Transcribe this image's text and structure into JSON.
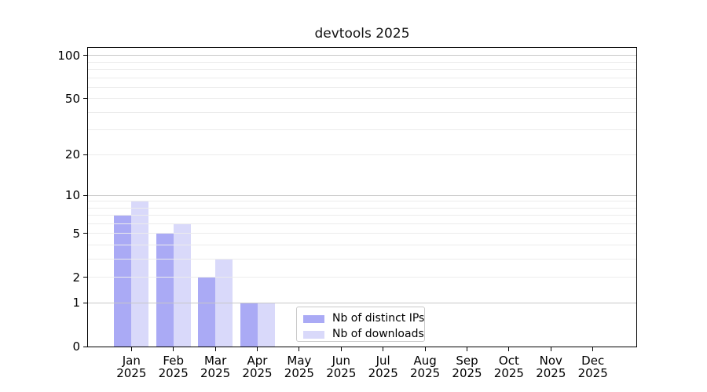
{
  "chart_data": {
    "type": "bar",
    "title": "devtools 2025",
    "categories": [
      "Jan",
      "Feb",
      "Mar",
      "Apr",
      "May",
      "Jun",
      "Jul",
      "Aug",
      "Sep",
      "Oct",
      "Nov",
      "Dec"
    ],
    "category_year": "2025",
    "series": [
      {
        "name": "Nb of distinct IPs",
        "color": "#aaaaf5",
        "values": [
          7,
          5,
          2,
          1,
          0,
          0,
          0,
          0,
          0,
          0,
          0,
          0
        ]
      },
      {
        "name": "Nb of downloads",
        "color": "#d9d9fa",
        "values": [
          9,
          6,
          3,
          1,
          0,
          0,
          0,
          0,
          0,
          0,
          0,
          0
        ]
      }
    ],
    "xlabel": "",
    "ylabel": "",
    "y_axis": {
      "scale": "log1p",
      "ticks": [
        0,
        1,
        2,
        5,
        10,
        20,
        50,
        100
      ],
      "top_value": 113
    },
    "gridlines": {
      "major": [
        1,
        10,
        100
      ],
      "minor": [
        2,
        3,
        4,
        5,
        6,
        7,
        8,
        9,
        20,
        30,
        40,
        50,
        60,
        70,
        80,
        90
      ]
    },
    "grid": true,
    "legend_position": "lower-center-left"
  }
}
